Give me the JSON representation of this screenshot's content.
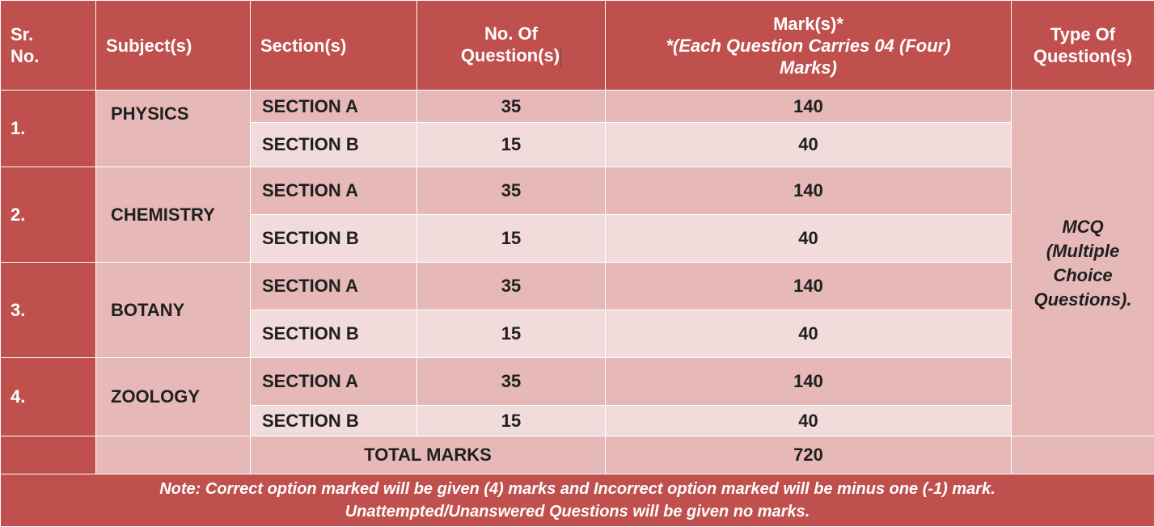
{
  "header": {
    "sr": [
      "Sr.",
      "No."
    ],
    "subject": "Subject(s)",
    "section": "Section(s)",
    "num_questions": [
      "No. Of",
      "Question(s)"
    ],
    "marks_title": "Mark(s)*",
    "marks_note": [
      "*(Each Question Carries 04 (Four)",
      "Marks)"
    ],
    "type": [
      "Type Of",
      "Question(s)"
    ]
  },
  "rows": [
    {
      "sr": "1.",
      "subject": "PHYSICS",
      "sections": [
        {
          "name": "SECTION A",
          "questions": "35",
          "marks": "140"
        },
        {
          "name": "SECTION B",
          "questions": "15",
          "marks": "40"
        }
      ]
    },
    {
      "sr": "2.",
      "subject": "CHEMISTRY",
      "sections": [
        {
          "name": "SECTION A",
          "questions": "35",
          "marks": "140"
        },
        {
          "name": "SECTION B",
          "questions": "15",
          "marks": "40"
        }
      ]
    },
    {
      "sr": "3.",
      "subject": "BOTANY",
      "sections": [
        {
          "name": "SECTION A",
          "questions": "35",
          "marks": "140"
        },
        {
          "name": "SECTION B",
          "questions": "15",
          "marks": "40"
        }
      ]
    },
    {
      "sr": "4.",
      "subject": "ZOOLOGY",
      "sections": [
        {
          "name": "SECTION A",
          "questions": "35",
          "marks": "140"
        },
        {
          "name": "SECTION B",
          "questions": "15",
          "marks": "40"
        }
      ]
    }
  ],
  "type_of_question": [
    "MCQ",
    "(Multiple",
    "Choice",
    "Questions)."
  ],
  "total": {
    "label": "TOTAL MARKS",
    "value": "720"
  },
  "note": [
    "Note: Correct option marked will be given (4) marks and Incorrect option marked will be minus one (-1) mark.",
    "Unattempted/Unanswered Questions will be given no marks."
  ],
  "colors": {
    "header_bg": "#c0504d",
    "row_dark": "#e6b9b8",
    "row_light": "#f2dcdb"
  }
}
